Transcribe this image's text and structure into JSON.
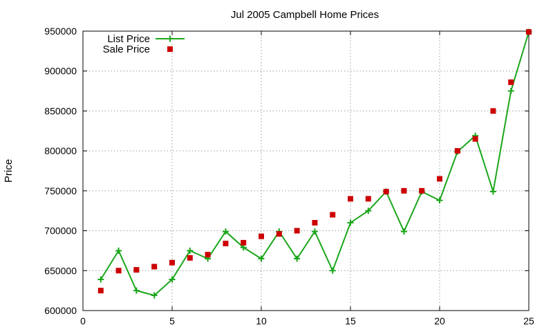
{
  "chart_data": {
    "type": "line",
    "title": "Jul 2005 Campbell Home Prices",
    "xlabel": "",
    "ylabel": "Price",
    "xlim": [
      0,
      25
    ],
    "ylim": [
      600000,
      950000
    ],
    "xticks": [
      0,
      5,
      10,
      15,
      20,
      25
    ],
    "yticks": [
      600000,
      650000,
      700000,
      750000,
      800000,
      850000,
      900000,
      950000
    ],
    "grid": true,
    "legend_position": "top-left",
    "series": [
      {
        "name": "List Price",
        "style": "linespoints",
        "marker": "plus",
        "color": "#1aa61a",
        "x": [
          1,
          2,
          3,
          4,
          5,
          6,
          7,
          8,
          9,
          10,
          11,
          12,
          13,
          14,
          15,
          16,
          17,
          18,
          19,
          20,
          21,
          22,
          23,
          24,
          25
        ],
        "values": [
          639000,
          675000,
          625000,
          619000,
          639000,
          675000,
          665000,
          699000,
          679000,
          665000,
          699000,
          665000,
          699000,
          650000,
          710000,
          725000,
          749000,
          699000,
          749000,
          738000,
          799000,
          819000,
          749000,
          875000,
          949000
        ]
      },
      {
        "name": "Sale Price",
        "style": "points",
        "marker": "square",
        "color": "#cc0000",
        "x": [
          1,
          2,
          3,
          4,
          5,
          6,
          7,
          8,
          9,
          10,
          11,
          12,
          13,
          14,
          15,
          16,
          17,
          18,
          19,
          20,
          21,
          22,
          23,
          24,
          25
        ],
        "values": [
          625000,
          650000,
          651000,
          655000,
          660000,
          666000,
          670000,
          684000,
          685000,
          693000,
          696000,
          700000,
          710000,
          720000,
          740000,
          740000,
          749000,
          750000,
          750000,
          765000,
          800000,
          815000,
          850000,
          886000,
          949000
        ]
      }
    ]
  }
}
